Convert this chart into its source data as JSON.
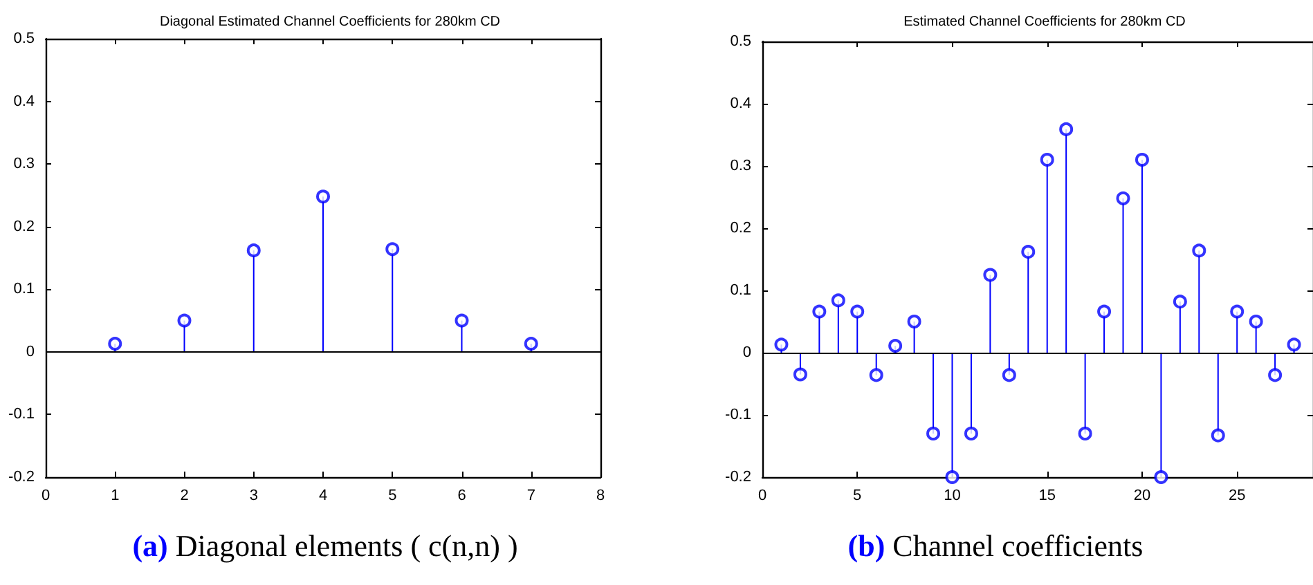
{
  "chart_data": [
    {
      "type": "lollipop",
      "title": "Diagonal Estimated Channel Coefficients for 280km CD",
      "x": [
        1,
        2,
        3,
        4,
        5,
        6,
        7
      ],
      "series": [
        {
          "color": "#0000ff",
          "values": [
            0.013,
            0.05,
            0.162,
            0.248,
            0.164,
            0.05,
            0.013
          ]
        }
      ],
      "xlim": [
        0,
        8
      ],
      "xticks": [
        0,
        1,
        2,
        3,
        4,
        5,
        6,
        7,
        8
      ],
      "ylim": [
        -0.2,
        0.5
      ],
      "yticks": [
        -0.2,
        -0.1,
        0,
        0.1,
        0.2,
        0.3,
        0.4,
        0.5
      ],
      "marker": "circle",
      "annotations": [
        "(a) Diagonal elements ( c(n,n) )"
      ]
    },
    {
      "type": "lollipop",
      "title": "Estimated Channel Coefficients for 280km CD",
      "x": [
        1,
        2,
        3,
        4,
        5,
        6,
        7,
        8,
        9,
        10,
        11,
        12,
        13,
        14,
        15,
        16,
        17,
        18,
        19,
        20,
        21,
        22,
        23,
        24,
        25,
        26,
        27,
        28
      ],
      "series": [
        {
          "color": "#0000ff",
          "values": [
            0.013,
            -0.035,
            0.066,
            0.084,
            0.066,
            -0.036,
            0.011,
            0.05,
            -0.13,
            -0.2,
            -0.13,
            0.125,
            -0.036,
            0.162,
            0.31,
            0.359,
            -0.13,
            0.066,
            0.248,
            0.31,
            -0.2,
            0.082,
            0.164,
            -0.133,
            0.066,
            0.05,
            -0.036,
            0.013
          ]
        }
      ],
      "xlim": [
        0,
        29
      ],
      "xticks": [
        0,
        5,
        10,
        15,
        20,
        25
      ],
      "ylim": [
        -0.2,
        0.5
      ],
      "yticks": [
        -0.2,
        -0.1,
        0,
        0.1,
        0.2,
        0.3,
        0.4,
        0.5
      ],
      "marker": "circle",
      "annotations": [
        "(b) Channel coefficients"
      ]
    }
  ]
}
